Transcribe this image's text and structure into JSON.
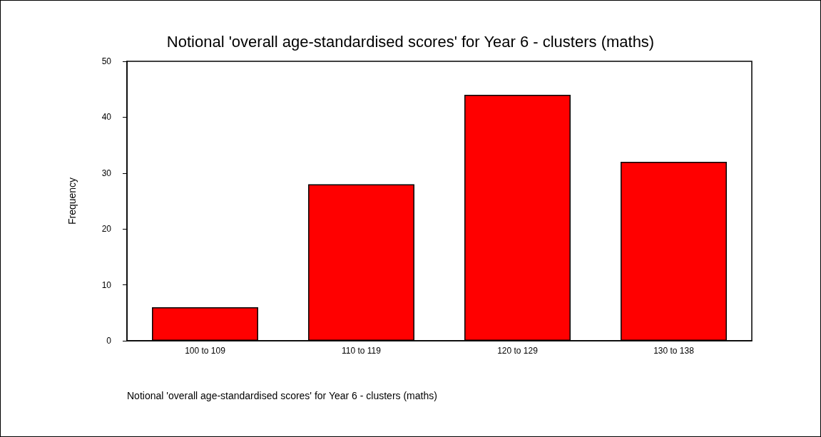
{
  "chart_data": {
    "type": "bar",
    "title": "Notional 'overall age-standardised scores' for Year 6 - clusters (maths)",
    "xlabel": "Notional 'overall age-standardised scores' for Year 6 - clusters (maths)",
    "ylabel": "Frequency",
    "categories": [
      "100 to 109",
      "110 to 119",
      "120 to 129",
      "130 to 138"
    ],
    "values": [
      6,
      28,
      44,
      32
    ],
    "color": "#ff0000",
    "ylim": [
      0,
      50
    ],
    "yticks": [
      0,
      10,
      20,
      30,
      40,
      50
    ],
    "grid": false
  }
}
